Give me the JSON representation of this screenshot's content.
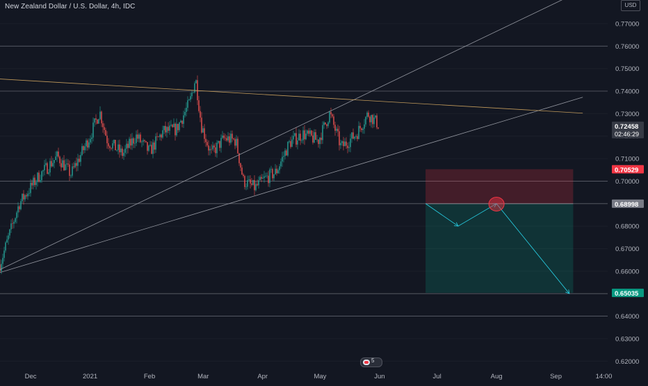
{
  "header": {
    "symbol_title": "New Zealand Dollar / U.S. Dollar, 4h, IDC",
    "currency": "USD"
  },
  "events_badge": {
    "count": "5"
  },
  "chart_data": {
    "type": "candlestick",
    "title": "New Zealand Dollar / U.S. Dollar, 4h, IDC",
    "xlabel": "",
    "ylabel": "",
    "ylim": [
      0.6105,
      0.7805
    ],
    "x_ticks": [
      "Dec",
      "2021",
      "Feb",
      "Mar",
      "Apr",
      "May",
      "Jun",
      "Jul",
      "Aug",
      "Sep",
      "14:00"
    ],
    "x_tick_positions_index": [
      0,
      1,
      2,
      3,
      4,
      5,
      6,
      7,
      8,
      9,
      10
    ],
    "y_ticks": [
      0.77,
      0.76,
      0.75,
      0.74,
      0.73,
      0.72,
      0.71,
      0.7,
      0.69,
      0.68,
      0.67,
      0.66,
      0.65,
      0.64,
      0.63,
      0.62
    ],
    "y_tick_labels": [
      "0.77000",
      "0.76000",
      "0.75000",
      "0.74000",
      "0.73000",
      "0.72000",
      "0.71000",
      "0.70000",
      "0.69000",
      "0.68000",
      "0.67000",
      "0.66000",
      "0.65000",
      "0.64000",
      "0.63000",
      "0.62000"
    ],
    "price_path": [
      {
        "t": "2020-11-15",
        "p": 0.663
      },
      {
        "t": "2020-11-25",
        "p": 0.69
      },
      {
        "t": "2020-12-05",
        "p": 0.702
      },
      {
        "t": "2020-12-15",
        "p": 0.711
      },
      {
        "t": "2020-12-22",
        "p": 0.703
      },
      {
        "t": "2021-01-01",
        "p": 0.72
      },
      {
        "t": "2021-01-06",
        "p": 0.731
      },
      {
        "t": "2021-01-10",
        "p": 0.718
      },
      {
        "t": "2021-01-18",
        "p": 0.712
      },
      {
        "t": "2021-01-25",
        "p": 0.72
      },
      {
        "t": "2021-02-01",
        "p": 0.713
      },
      {
        "t": "2021-02-08",
        "p": 0.722
      },
      {
        "t": "2021-02-15",
        "p": 0.723
      },
      {
        "t": "2021-02-22",
        "p": 0.735
      },
      {
        "t": "2021-02-25",
        "p": 0.746
      },
      {
        "t": "2021-02-28",
        "p": 0.725
      },
      {
        "t": "2021-03-05",
        "p": 0.712
      },
      {
        "t": "2021-03-12",
        "p": 0.719
      },
      {
        "t": "2021-03-18",
        "p": 0.718
      },
      {
        "t": "2021-03-22",
        "p": 0.7
      },
      {
        "t": "2021-03-28",
        "p": 0.697
      },
      {
        "t": "2021-04-02",
        "p": 0.701
      },
      {
        "t": "2021-04-08",
        "p": 0.704
      },
      {
        "t": "2021-04-15",
        "p": 0.717
      },
      {
        "t": "2021-04-22",
        "p": 0.721
      },
      {
        "t": "2021-04-30",
        "p": 0.718
      },
      {
        "t": "2021-05-06",
        "p": 0.73
      },
      {
        "t": "2021-05-12",
        "p": 0.715
      },
      {
        "t": "2021-05-20",
        "p": 0.721
      },
      {
        "t": "2021-05-26",
        "p": 0.73
      },
      {
        "t": "2021-06-01",
        "p": 0.7246
      }
    ],
    "price_labels": [
      {
        "label": "0.72458",
        "value": 0.72458,
        "sublabel": "02:46:29",
        "color": "#363a45",
        "text_color": "#ffffff"
      },
      {
        "label": "0.70529",
        "value": 0.70529,
        "color": "#f23645",
        "text_color": "#ffffff"
      },
      {
        "label": "0.68998",
        "value": 0.68998,
        "color": "#787b86",
        "text_color": "#ffffff"
      },
      {
        "label": "0.65035",
        "value": 0.65035,
        "color": "#089981",
        "text_color": "#ffffff"
      }
    ],
    "position_tool": {
      "entry": 0.68998,
      "stop": 0.70529,
      "target": 0.65035,
      "start": "2021-06-25",
      "end": "2021-09-10"
    },
    "projection_path": [
      {
        "t": "2021-06-25",
        "p": 0.69
      },
      {
        "t": "2021-07-12",
        "p": 0.68
      },
      {
        "t": "2021-08-01",
        "p": 0.69
      },
      {
        "t": "2021-09-08",
        "p": 0.65
      }
    ],
    "trendlines": [
      {
        "from": {
          "t": "2020-11-15",
          "p": 0.6594
        },
        "to": {
          "t": "2021-09-15",
          "p": 0.7373
        },
        "color": "#9598a1"
      },
      {
        "from": {
          "t": "2020-11-15",
          "p": 0.6607
        },
        "to": {
          "t": "2021-09-06",
          "p": 0.7813
        },
        "color": "#9598a1"
      },
      {
        "from": {
          "t": "2020-11-15",
          "p": 0.7454
        },
        "to": {
          "t": "2021-09-15",
          "p": 0.7302
        },
        "color": "#c19a5b"
      }
    ],
    "horizontal_lines": [
      0.76,
      0.74,
      0.7,
      0.69,
      0.65,
      0.64
    ],
    "marker": {
      "t": "2021-08-01",
      "p": 0.6898
    },
    "colors": {
      "background": "#131722",
      "up": "#26a69a",
      "down": "#ef5350",
      "stop_zone": "rgba(242,54,69,0.22)",
      "target_zone": "rgba(8,153,129,0.22)",
      "projection": "#26c6da",
      "grid": "#2a2e39",
      "axis_text": "#b2b5be"
    }
  }
}
